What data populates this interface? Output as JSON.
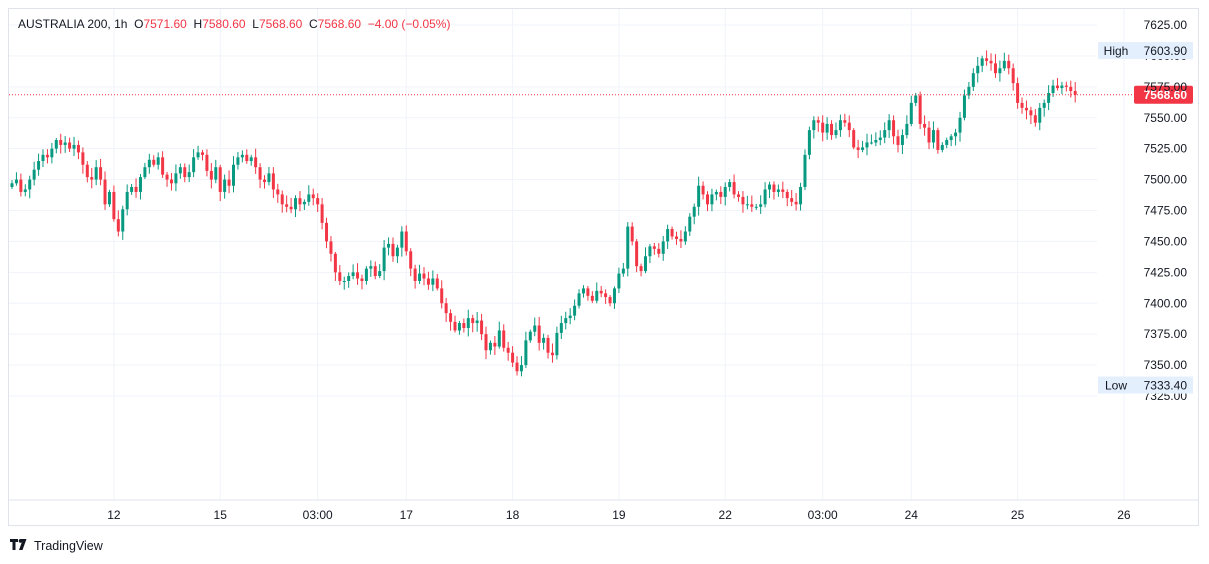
{
  "legend": {
    "symbol": "AUSTRALIA 200",
    "sep": ",",
    "interval": "1h",
    "open_label": "O",
    "open": "7571.60",
    "high_label": "H",
    "high": "7580.60",
    "low_label": "L",
    "low": "7568.60",
    "close_label": "C",
    "close": "7568.60",
    "change": "−4.00 (−0.05%)"
  },
  "brand": {
    "name": "TradingView"
  },
  "colors": {
    "up": "#089981",
    "down": "#f23645",
    "grid": "#f0f3fa",
    "axis_text": "#131722",
    "badge": "#e3effd"
  },
  "chart_data": {
    "type": "candlestick",
    "ylim": [
      7315,
      7635
    ],
    "y_ticks": [
      7325,
      7350,
      7375,
      7400,
      7425,
      7450,
      7475,
      7500,
      7525,
      7550,
      7575,
      7600,
      7625
    ],
    "y_tick_labels": [
      "7325.00",
      "7350.00",
      "7375.00",
      "7400.00",
      "7425.00",
      "7450.00",
      "7475.00",
      "7500.00",
      "7525.00",
      "7550.00",
      "7575.00",
      "7600.00",
      "7625.00"
    ],
    "x_ticks": [
      {
        "label": "12",
        "bar": 23
      },
      {
        "label": "15",
        "bar": 47
      },
      {
        "label": "03:00",
        "bar": 69
      },
      {
        "label": "17",
        "bar": 89
      },
      {
        "label": "18",
        "bar": 113
      },
      {
        "label": "19",
        "bar": 137
      },
      {
        "label": "22",
        "bar": 161
      },
      {
        "label": "03:00",
        "bar": 183
      },
      {
        "label": "24",
        "bar": 203
      },
      {
        "label": "25",
        "bar": 227
      },
      {
        "label": "26",
        "bar": 251
      }
    ],
    "high_marker": {
      "label": "High",
      "value": 7603.9,
      "text": "7603.90"
    },
    "low_marker": {
      "label": "Low",
      "value": 7333.4,
      "text": "7333.40"
    },
    "last_price": {
      "value": 7568.6,
      "text": "7568.60"
    },
    "closes": [
      7497,
      7500,
      7490,
      7492,
      7500,
      7508,
      7515,
      7520,
      7518,
      7525,
      7532,
      7528,
      7530,
      7525,
      7528,
      7522,
      7512,
      7502,
      7500,
      7510,
      7500,
      7480,
      7490,
      7468,
      7458,
      7476,
      7490,
      7494,
      7490,
      7502,
      7510,
      7516,
      7512,
      7518,
      7504,
      7500,
      7497,
      7505,
      7510,
      7502,
      7506,
      7518,
      7522,
      7520,
      7507,
      7500,
      7510,
      7490,
      7500,
      7495,
      7512,
      7518,
      7520,
      7515,
      7518,
      7510,
      7500,
      7498,
      7505,
      7492,
      7488,
      7480,
      7478,
      7476,
      7485,
      7480,
      7482,
      7488,
      7485,
      7480,
      7465,
      7450,
      7440,
      7425,
      7418,
      7418,
      7422,
      7425,
      7420,
      7418,
      7428,
      7430,
      7422,
      7426,
      7445,
      7448,
      7438,
      7445,
      7458,
      7442,
      7428,
      7418,
      7424,
      7420,
      7415,
      7420,
      7412,
      7400,
      7392,
      7385,
      7378,
      7384,
      7380,
      7388,
      7384,
      7386,
      7375,
      7362,
      7368,
      7365,
      7378,
      7364,
      7360,
      7352,
      7345,
      7350,
      7370,
      7377,
      7382,
      7368,
      7372,
      7360,
      7358,
      7376,
      7384,
      7388,
      7390,
      7398,
      7408,
      7412,
      7406,
      7402,
      7410,
      7408,
      7405,
      7400,
      7412,
      7424,
      7428,
      7462,
      7450,
      7430,
      7426,
      7438,
      7446,
      7444,
      7440,
      7450,
      7460,
      7454,
      7452,
      7450,
      7458,
      7470,
      7478,
      7495,
      7488,
      7480,
      7488,
      7490,
      7486,
      7494,
      7498,
      7488,
      7486,
      7480,
      7480,
      7478,
      7478,
      7480,
      7492,
      7496,
      7490,
      7492,
      7490,
      7485,
      7482,
      7480,
      7494,
      7520,
      7540,
      7548,
      7546,
      7538,
      7545,
      7536,
      7540,
      7548,
      7546,
      7540,
      7526,
      7524,
      7526,
      7530,
      7530,
      7532,
      7534,
      7540,
      7548,
      7535,
      7528,
      7536,
      7545,
      7562,
      7568,
      7545,
      7542,
      7530,
      7540,
      7524,
      7528,
      7532,
      7535,
      7538,
      7550,
      7568,
      7575,
      7586,
      7592,
      7598,
      7596,
      7594,
      7586,
      7590,
      7596,
      7590,
      7578,
      7562,
      7558,
      7556,
      7552,
      7546,
      7558,
      7562,
      7570,
      7576,
      7574,
      7576,
      7575,
      7571.6,
      7568.6
    ]
  }
}
